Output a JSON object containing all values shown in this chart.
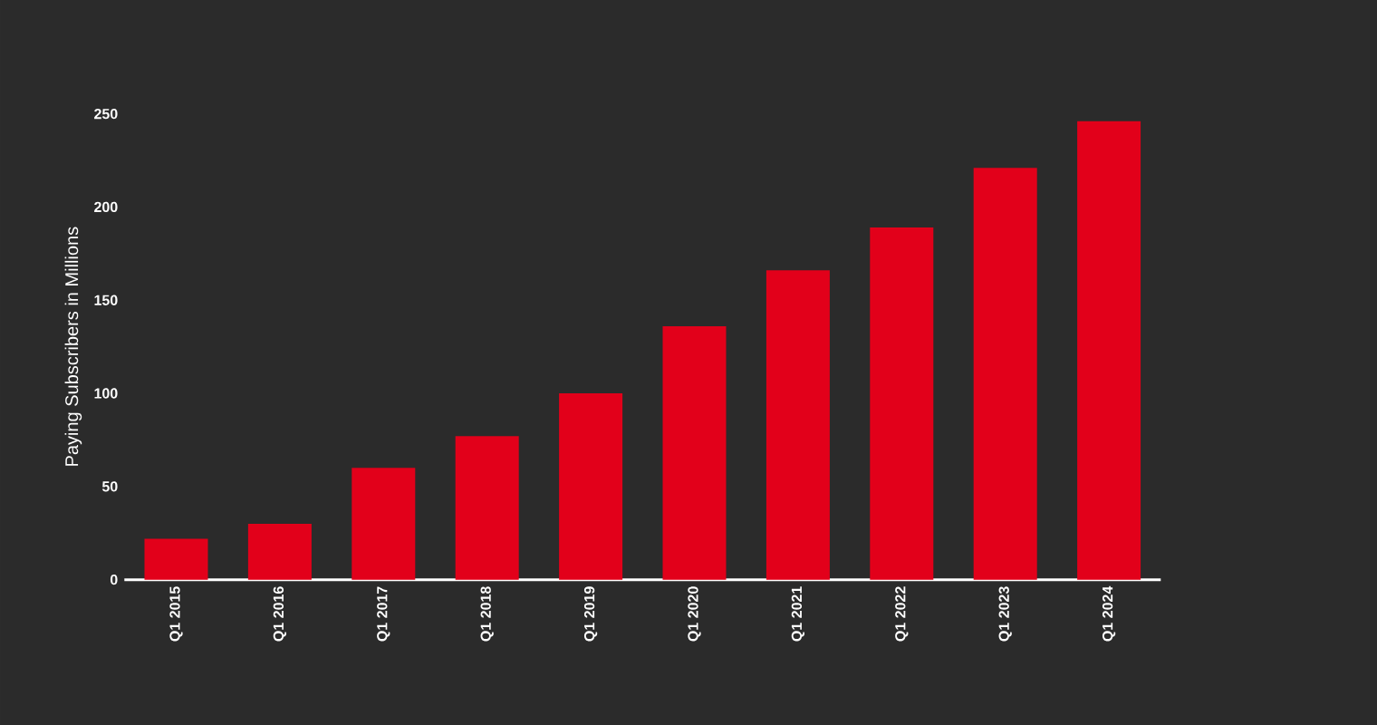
{
  "chart_data": {
    "type": "bar",
    "ylabel": "Paying Subscribers in Millions",
    "categories": [
      "Q1 2015",
      "Q1 2016",
      "Q1 2017",
      "Q1 2018",
      "Q1 2019",
      "Q1 2020",
      "Q1 2021",
      "Q1 2022",
      "Q1 2023",
      "Q1 2024"
    ],
    "values": [
      22,
      30,
      60,
      77,
      100,
      136,
      166,
      189,
      221,
      246
    ],
    "color": "#e2001a",
    "ylim": [
      0,
      250
    ],
    "yticks": [
      0,
      50,
      100,
      150,
      200,
      250
    ]
  }
}
